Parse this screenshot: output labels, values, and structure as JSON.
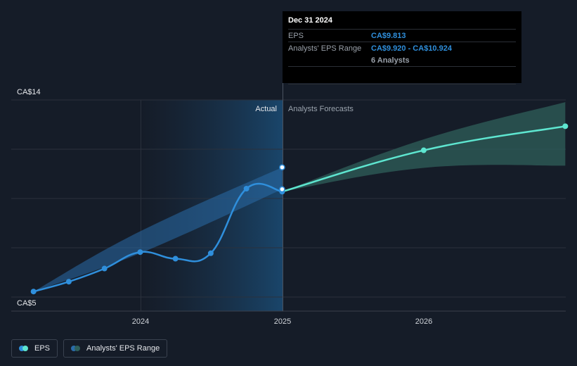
{
  "chart_data": {
    "type": "line",
    "y_axis": {
      "min_label": "CA$5",
      "max_label": "CA$14",
      "ylim": [
        5,
        14
      ]
    },
    "x_ticks": [
      "2024",
      "2025",
      "2026"
    ],
    "sections": {
      "actual": "Actual",
      "forecast": "Analysts Forecasts"
    },
    "series": [
      {
        "name": "EPS",
        "color": "#2f8fdc",
        "points": [
          {
            "x": "2023-03-31",
            "y": 5.25
          },
          {
            "x": "2023-06-30",
            "y": 5.7
          },
          {
            "x": "2023-09-30",
            "y": 6.3
          },
          {
            "x": "2023-12-31",
            "y": 7.05
          },
          {
            "x": "2024-03-31",
            "y": 6.75
          },
          {
            "x": "2024-06-30",
            "y": 7.0
          },
          {
            "x": "2024-09-30",
            "y": 9.95
          },
          {
            "x": "2024-12-31",
            "y": 9.813
          }
        ]
      },
      {
        "name": "EPS Forecast",
        "color": "#5ee6d0",
        "points": [
          {
            "x": "2024-12-31",
            "y": 9.813
          },
          {
            "x": "2025-12-31",
            "y": 11.7
          },
          {
            "x": "2026-12-31",
            "y": 12.8
          }
        ]
      }
    ],
    "actual_range": {
      "points": [
        {
          "x": "2023-03-31",
          "low": 5.25,
          "high": 5.25
        },
        {
          "x": "2023-12-31",
          "low": 7.0,
          "high": 8.0
        },
        {
          "x": "2024-12-31",
          "low": 9.92,
          "high": 10.924
        }
      ]
    },
    "forecast_range": {
      "points": [
        {
          "x": "2024-12-31",
          "low": 9.813,
          "high": 9.813
        },
        {
          "x": "2025-12-31",
          "low": 10.9,
          "high": 12.2
        },
        {
          "x": "2026-12-31",
          "low": 11.0,
          "high": 13.9
        }
      ]
    },
    "colors": {
      "eps": "#2f8fdc",
      "forecast": "#5ee6d0",
      "range_actual": "#2a6ca8",
      "range_forecast": "#2f5f5a"
    }
  },
  "tooltip": {
    "date": "Dec 31 2024",
    "eps_label": "EPS",
    "eps_value": "CA$9.813",
    "range_label": "Analysts' EPS Range",
    "range_value": "CA$9.920 - CA$10.924",
    "analysts": "6 Analysts"
  },
  "legend": {
    "eps": "EPS",
    "range": "Analysts' EPS Range"
  }
}
